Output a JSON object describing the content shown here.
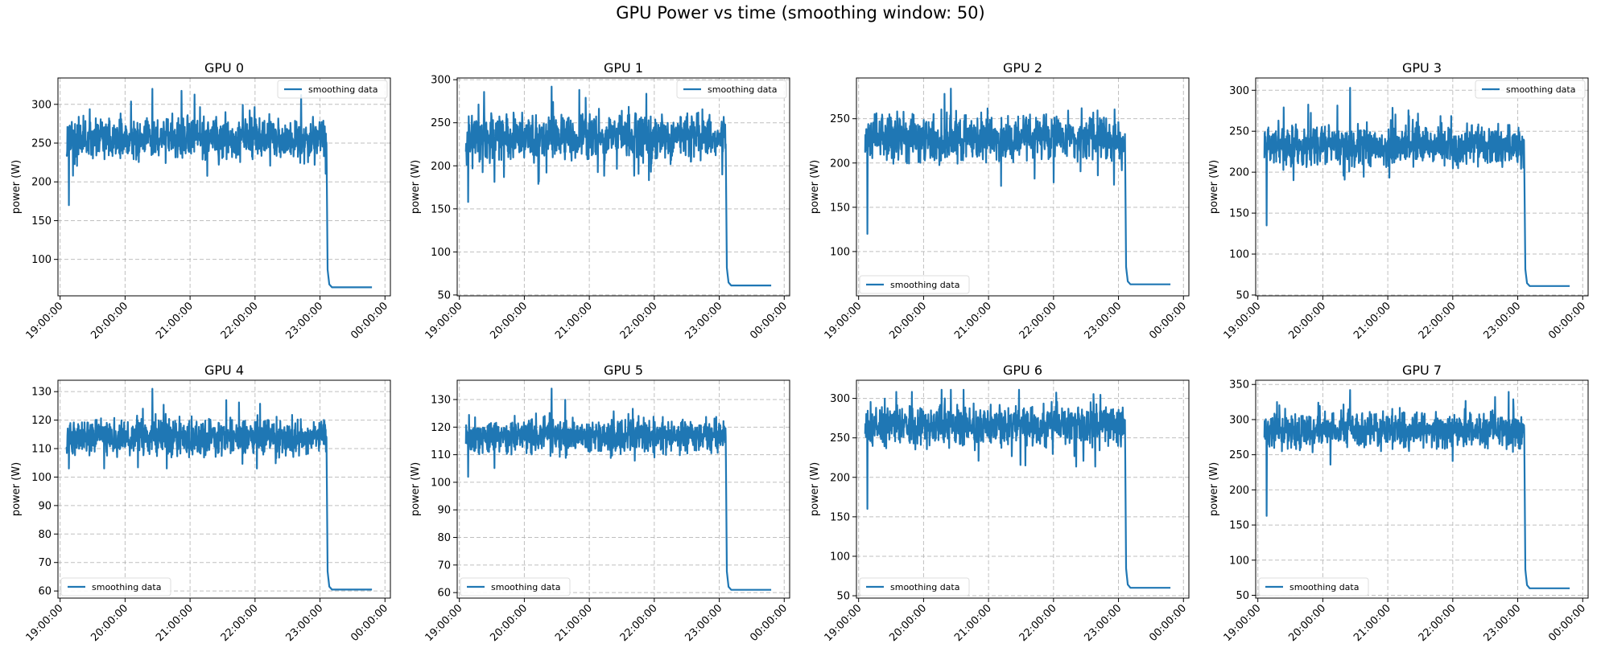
{
  "figure_title": "GPU Power vs time (smoothing window: 50)",
  "chart_data": [
    {
      "type": "line",
      "title": "GPU 0",
      "xlabel": "",
      "ylabel": "power (W)",
      "ylim": [
        53,
        334
      ],
      "yticks": [
        100,
        150,
        200,
        250,
        300
      ],
      "xticks": [
        "19:00:00",
        "20:00:00",
        "21:00:00",
        "22:00:00",
        "23:00:00",
        "00:00:00"
      ],
      "xlim": [
        "18:58:00",
        "00:05:00"
      ],
      "legend": "top-right",
      "grid": true,
      "color": "#1f77b4",
      "series": [
        {
          "name": "smoothing data",
          "start": "19:06:00",
          "drop": "23:06:00",
          "end": "23:48:00",
          "mean": 256,
          "amplitude": 22,
          "min": 170,
          "max": 320,
          "tail": 64
        }
      ]
    },
    {
      "type": "line",
      "title": "GPU 1",
      "xlabel": "",
      "ylabel": "power (W)",
      "ylim": [
        49,
        302
      ],
      "yticks": [
        50,
        100,
        150,
        200,
        250,
        300
      ],
      "xticks": [
        "19:00:00",
        "20:00:00",
        "21:00:00",
        "22:00:00",
        "23:00:00",
        "00:00:00"
      ],
      "xlim": [
        "18:58:00",
        "00:05:00"
      ],
      "legend": "top-right",
      "grid": true,
      "color": "#1f77b4",
      "series": [
        {
          "name": "smoothing data",
          "start": "19:06:00",
          "drop": "23:06:00",
          "end": "23:48:00",
          "mean": 234,
          "amplitude": 20,
          "min": 158,
          "max": 292,
          "tail": 61
        }
      ]
    },
    {
      "type": "line",
      "title": "GPU 2",
      "xlabel": "",
      "ylabel": "power (W)",
      "ylim": [
        50,
        296
      ],
      "yticks": [
        100,
        150,
        200,
        250
      ],
      "xticks": [
        "19:00:00",
        "20:00:00",
        "21:00:00",
        "22:00:00",
        "23:00:00",
        "00:00:00"
      ],
      "xlim": [
        "18:58:00",
        "00:05:00"
      ],
      "legend": "bottom-left",
      "grid": true,
      "color": "#1f77b4",
      "series": [
        {
          "name": "smoothing data",
          "start": "19:06:00",
          "drop": "23:06:00",
          "end": "23:48:00",
          "mean": 228,
          "amplitude": 20,
          "min": 120,
          "max": 284,
          "tail": 63
        }
      ]
    },
    {
      "type": "line",
      "title": "GPU 3",
      "xlabel": "",
      "ylabel": "power (W)",
      "ylim": [
        49,
        315
      ],
      "yticks": [
        50,
        100,
        150,
        200,
        250,
        300
      ],
      "xticks": [
        "19:00:00",
        "20:00:00",
        "21:00:00",
        "22:00:00",
        "23:00:00",
        "00:00:00"
      ],
      "xlim": [
        "18:58:00",
        "00:05:00"
      ],
      "legend": "top-right",
      "grid": true,
      "color": "#1f77b4",
      "series": [
        {
          "name": "smoothing data",
          "start": "19:06:00",
          "drop": "23:06:00",
          "end": "23:48:00",
          "mean": 232,
          "amplitude": 20,
          "min": 135,
          "max": 303,
          "tail": 61
        }
      ]
    },
    {
      "type": "line",
      "title": "GPU 4",
      "xlabel": "",
      "ylabel": "power (W)",
      "ylim": [
        57.5,
        134
      ],
      "yticks": [
        60,
        70,
        80,
        90,
        100,
        110,
        120,
        130
      ],
      "xticks": [
        "19:00:00",
        "20:00:00",
        "21:00:00",
        "22:00:00",
        "23:00:00",
        "00:00:00"
      ],
      "xlim": [
        "18:58:00",
        "00:05:00"
      ],
      "legend": "bottom-left",
      "grid": true,
      "color": "#1f77b4",
      "series": [
        {
          "name": "smoothing data",
          "start": "19:06:00",
          "drop": "23:06:00",
          "end": "23:48:00",
          "mean": 114,
          "amplitude": 5,
          "min": 103,
          "max": 131,
          "tail": 60.5
        }
      ]
    },
    {
      "type": "line",
      "title": "GPU 5",
      "xlabel": "",
      "ylabel": "power (W)",
      "ylim": [
        58,
        137
      ],
      "yticks": [
        60,
        70,
        80,
        90,
        100,
        110,
        120,
        130
      ],
      "xticks": [
        "19:00:00",
        "20:00:00",
        "21:00:00",
        "22:00:00",
        "23:00:00",
        "00:00:00"
      ],
      "xlim": [
        "18:58:00",
        "00:05:00"
      ],
      "legend": "bottom-left",
      "grid": true,
      "color": "#1f77b4",
      "series": [
        {
          "name": "smoothing data",
          "start": "19:06:00",
          "drop": "23:06:00",
          "end": "23:48:00",
          "mean": 117,
          "amplitude": 5,
          "min": 102,
          "max": 134,
          "tail": 61
        }
      ]
    },
    {
      "type": "line",
      "title": "GPU 6",
      "xlabel": "",
      "ylabel": "power (W)",
      "ylim": [
        47,
        323
      ],
      "yticks": [
        50,
        100,
        150,
        200,
        250,
        300
      ],
      "xticks": [
        "19:00:00",
        "20:00:00",
        "21:00:00",
        "22:00:00",
        "23:00:00",
        "00:00:00"
      ],
      "xlim": [
        "18:58:00",
        "00:05:00"
      ],
      "legend": "bottom-left",
      "grid": true,
      "color": "#1f77b4",
      "series": [
        {
          "name": "smoothing data",
          "start": "19:06:00",
          "drop": "23:06:00",
          "end": "23:48:00",
          "mean": 266,
          "amplitude": 20,
          "min": 160,
          "max": 311,
          "tail": 60
        }
      ]
    },
    {
      "type": "line",
      "title": "GPU 7",
      "xlabel": "",
      "ylabel": "power (W)",
      "ylim": [
        46,
        356
      ],
      "yticks": [
        50,
        100,
        150,
        200,
        250,
        300,
        350
      ],
      "xticks": [
        "19:00:00",
        "20:00:00",
        "21:00:00",
        "22:00:00",
        "23:00:00",
        "00:00:00"
      ],
      "xlim": [
        "18:58:00",
        "00:05:00"
      ],
      "legend": "bottom-left",
      "grid": true,
      "color": "#1f77b4",
      "series": [
        {
          "name": "smoothing data",
          "start": "19:06:00",
          "drop": "23:06:00",
          "end": "23:48:00",
          "mean": 284,
          "amplitude": 20,
          "min": 163,
          "max": 342,
          "tail": 60
        }
      ]
    }
  ]
}
